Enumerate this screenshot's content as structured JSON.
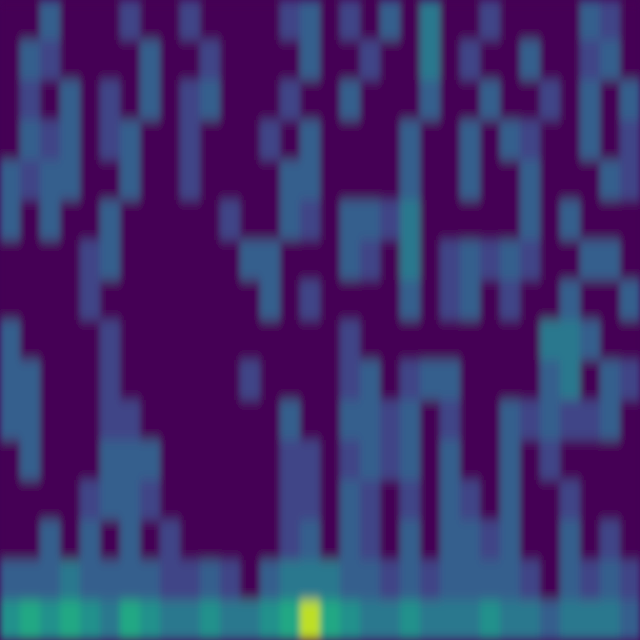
{
  "chart_data": {
    "type": "heatmap",
    "tick_labels": false,
    "zlim": [
      0,
      1
    ],
    "values": [
      [
        0,
        0,
        0.3,
        0,
        0,
        0,
        0.2,
        0,
        0,
        0.2,
        0,
        0,
        0,
        0,
        0.2,
        0.3,
        0,
        0.2,
        0,
        0.3,
        0,
        0.4,
        0,
        0,
        0.2,
        0,
        0,
        0,
        0,
        0.3,
        0.2,
        0
      ],
      [
        0,
        0.3,
        0.2,
        0,
        0,
        0,
        0,
        0.3,
        0,
        0,
        0.2,
        0,
        0,
        0,
        0,
        0.3,
        0,
        0,
        0.2,
        0,
        0,
        0.4,
        0,
        0.2,
        0,
        0,
        0.3,
        0,
        0,
        0.2,
        0.3,
        0
      ],
      [
        0,
        0.2,
        0,
        0.3,
        0,
        0.2,
        0,
        0.3,
        0,
        0.2,
        0.3,
        0,
        0,
        0,
        0.2,
        0,
        0,
        0.3,
        0,
        0,
        0,
        0.3,
        0,
        0,
        0.3,
        0,
        0,
        0.2,
        0,
        0.3,
        0,
        0.3
      ],
      [
        0,
        0.3,
        0.2,
        0.3,
        0,
        0.2,
        0.3,
        0,
        0,
        0.2,
        0,
        0,
        0,
        0.2,
        0,
        0.3,
        0,
        0,
        0,
        0,
        0.3,
        0,
        0,
        0.3,
        0,
        0.3,
        0.2,
        0,
        0,
        0.3,
        0,
        0.2
      ],
      [
        0.3,
        0.2,
        0.3,
        0.3,
        0,
        0,
        0.3,
        0,
        0,
        0.2,
        0,
        0,
        0,
        0,
        0.3,
        0.3,
        0,
        0,
        0,
        0,
        0.3,
        0,
        0,
        0.3,
        0,
        0,
        0.3,
        0,
        0,
        0,
        0.3,
        0.2
      ],
      [
        0.3,
        0,
        0.3,
        0,
        0,
        0.3,
        0,
        0,
        0,
        0,
        0,
        0.2,
        0,
        0,
        0.3,
        0.2,
        0,
        0.3,
        0.3,
        0.2,
        0.4,
        0,
        0,
        0,
        0,
        0,
        0.3,
        0,
        0.3,
        0,
        0,
        0
      ],
      [
        0,
        0,
        0,
        0,
        0.2,
        0.3,
        0,
        0,
        0,
        0,
        0,
        0,
        0.3,
        0.3,
        0,
        0,
        0,
        0.3,
        0.2,
        0,
        0.4,
        0,
        0.2,
        0.3,
        0.2,
        0.3,
        0.2,
        0,
        0,
        0.3,
        0.3,
        0
      ],
      [
        0,
        0,
        0,
        0,
        0.2,
        0,
        0,
        0,
        0,
        0,
        0,
        0,
        0,
        0.3,
        0,
        0.2,
        0,
        0,
        0,
        0,
        0.3,
        0,
        0.2,
        0.3,
        0,
        0.2,
        0,
        0,
        0.3,
        0,
        0,
        0.3
      ],
      [
        0.3,
        0,
        0,
        0,
        0,
        0.2,
        0,
        0,
        0,
        0,
        0,
        0,
        0,
        0,
        0,
        0,
        0,
        0.2,
        0,
        0,
        0,
        0,
        0,
        0,
        0,
        0,
        0,
        0.4,
        0.4,
        0.3,
        0,
        0
      ],
      [
        0.3,
        0.3,
        0,
        0,
        0,
        0.2,
        0,
        0,
        0,
        0,
        0,
        0,
        0.2,
        0,
        0,
        0,
        0,
        0.2,
        0.3,
        0,
        0.2,
        0.3,
        0.3,
        0,
        0,
        0,
        0,
        0.3,
        0.4,
        0,
        0.3,
        0.2
      ],
      [
        0.3,
        0.3,
        0,
        0,
        0,
        0.2,
        0.2,
        0,
        0,
        0,
        0,
        0,
        0,
        0,
        0.3,
        0,
        0,
        0.3,
        0.3,
        0.2,
        0.3,
        0,
        0.2,
        0,
        0,
        0.3,
        0.2,
        0.3,
        0.2,
        0.2,
        0.3,
        0
      ],
      [
        0,
        0.3,
        0,
        0,
        0,
        0.3,
        0.3,
        0.3,
        0,
        0,
        0,
        0,
        0,
        0,
        0.2,
        0.2,
        0,
        0.2,
        0.3,
        0.2,
        0.3,
        0,
        0.3,
        0,
        0,
        0.3,
        0,
        0.2,
        0,
        0,
        0,
        0
      ],
      [
        0,
        0,
        0,
        0,
        0.2,
        0.3,
        0.3,
        0.2,
        0,
        0,
        0,
        0,
        0,
        0,
        0.2,
        0.2,
        0,
        0.3,
        0.2,
        0,
        0.2,
        0,
        0.3,
        0.2,
        0,
        0.3,
        0,
        0,
        0.2,
        0,
        0,
        0
      ],
      [
        0,
        0,
        0.3,
        0,
        0.3,
        0,
        0.3,
        0,
        0.2,
        0,
        0,
        0,
        0,
        0,
        0.2,
        0.3,
        0,
        0.3,
        0.2,
        0,
        0.3,
        0,
        0.3,
        0.3,
        0.2,
        0.3,
        0,
        0,
        0.3,
        0,
        0.2,
        0
      ],
      [
        0.3,
        0.3,
        0.3,
        0.4,
        0.3,
        0.3,
        0.3,
        0.3,
        0.2,
        0.2,
        0.3,
        0.2,
        0,
        0.3,
        0.4,
        0.4,
        0.4,
        0.3,
        0.3,
        0.2,
        0.3,
        0.2,
        0.3,
        0.3,
        0.3,
        0.3,
        0.2,
        0,
        0.3,
        0.2,
        0.3,
        0.2
      ],
      [
        0.5,
        0.6,
        0.5,
        0.6,
        0.5,
        0.4,
        0.6,
        0.5,
        0.4,
        0.4,
        0.5,
        0.4,
        0.4,
        0.5,
        0.6,
        0.9,
        0.6,
        0.5,
        0.4,
        0.4,
        0.5,
        0.4,
        0.4,
        0.4,
        0.5,
        0.4,
        0.4,
        0.3,
        0.4,
        0.4,
        0.4,
        0.3
      ]
    ]
  }
}
